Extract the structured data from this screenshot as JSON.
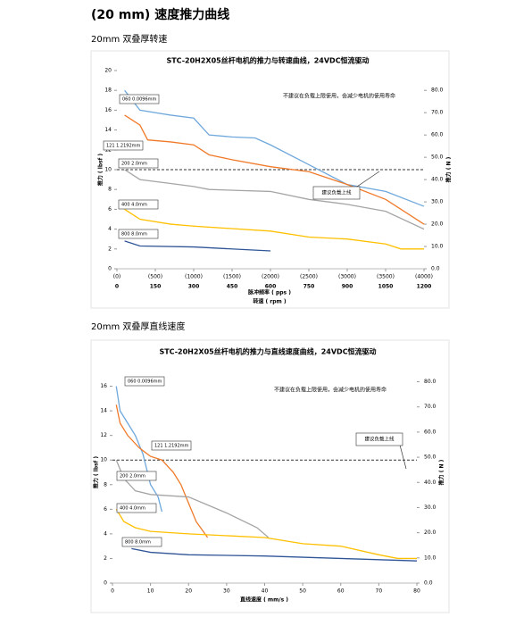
{
  "header": {
    "title": "(20 mm) 速度推力曲线"
  },
  "sections": [
    {
      "heading": "20mm 双叠厚转速"
    },
    {
      "heading": "20mm 双叠厚直线速度"
    }
  ],
  "chart_data": [
    {
      "type": "line",
      "title": "STC-20H2X05丝杆电机的推力与转速曲线，24VDC恒流驱动",
      "x_label": "脉冲频率 ( pps )",
      "x2_label": "转速 ( rpm )",
      "y_label": "推力 ( lbsf )",
      "y2_label": "推力 ( N )",
      "annotation": "不建议在负载上限使用，会减少电机的使用寿命",
      "limit_label": "建议负载上线",
      "limit": 10,
      "xlim": [
        0,
        4000
      ],
      "xticks": [
        {
          "value": 0,
          "label": "(0)"
        },
        {
          "value": 500,
          "label": "(500)"
        },
        {
          "value": 1000,
          "label": "(1000)"
        },
        {
          "value": 1500,
          "label": "(1500)"
        },
        {
          "value": 2000,
          "label": "(2000)"
        },
        {
          "value": 2500,
          "label": "(2500)"
        },
        {
          "value": 3000,
          "label": "(3000)"
        },
        {
          "value": 3500,
          "label": "(3500)"
        },
        {
          "value": 4000,
          "label": "(4000)"
        }
      ],
      "x2lim": [
        0,
        1200
      ],
      "x2ticks": [
        0,
        150,
        300,
        450,
        600,
        750,
        900,
        1050,
        1200
      ],
      "ylim": [
        0,
        20
      ],
      "yticks": [
        0,
        2,
        4,
        6,
        8,
        10,
        12,
        14,
        16,
        18,
        20
      ],
      "y2lim": [
        0,
        88.9
      ],
      "y2ticks": [
        {
          "value": 0,
          "label": "0.0"
        },
        {
          "value": 10,
          "label": "10.0"
        },
        {
          "value": 20,
          "label": "20.0"
        },
        {
          "value": 30,
          "label": "30.0"
        },
        {
          "value": 40,
          "label": "40.0"
        },
        {
          "value": 50,
          "label": "50.0"
        },
        {
          "value": 60,
          "label": "60.0"
        },
        {
          "value": 70,
          "label": "70.0"
        },
        {
          "value": 80,
          "label": "80.0"
        }
      ],
      "series": [
        {
          "name": "060 0.0096mm",
          "color": "#6fa8dc",
          "x": [
            100,
            300,
            700,
            1000,
            1200,
            1500,
            1800,
            2000,
            2500,
            3000,
            3500,
            4000
          ],
          "values": [
            18,
            16,
            15.5,
            15.2,
            13.5,
            13.3,
            13.2,
            12.5,
            10.5,
            8.5,
            7.8,
            6.3
          ]
        },
        {
          "name": "121 1.2192mm",
          "color": "#f07a2a",
          "x": [
            100,
            300,
            400,
            700,
            1000,
            1200,
            1500,
            2000,
            2500,
            3000,
            3500,
            4000
          ],
          "values": [
            15.5,
            14.5,
            13,
            12.8,
            12.5,
            11.5,
            11,
            10.3,
            9.8,
            8.5,
            7,
            4.5
          ]
        },
        {
          "name": "200 2.0mm",
          "color": "#a5a5a5",
          "x": [
            100,
            300,
            700,
            1000,
            1200,
            2000,
            2500,
            3000,
            3500,
            4000
          ],
          "values": [
            10,
            9,
            8.6,
            8.3,
            8,
            7.8,
            7,
            6.5,
            5.8,
            4
          ]
        },
        {
          "name": "400 4.0mm",
          "color": "#ffc000",
          "x": [
            100,
            300,
            700,
            1000,
            2000,
            2500,
            3000,
            3500,
            3700,
            4000
          ],
          "values": [
            6,
            5,
            4.5,
            4.3,
            3.8,
            3.2,
            3,
            2.5,
            2,
            2
          ]
        },
        {
          "name": "800 8.0mm",
          "color": "#2f5597",
          "x": [
            100,
            300,
            1000,
            2000
          ],
          "values": [
            2.8,
            2.3,
            2.2,
            1.8
          ]
        }
      ]
    },
    {
      "type": "line",
      "title": "STC-20H2X05丝杆电机的推力与直线速度曲线，24VDC恒流驱动",
      "x_label": "直线速度 ( mm/s )",
      "y_label": "推力 ( lbsf )",
      "y2_label": "推力 ( N )",
      "annotation": "不建议在负载上限使用，会减少电机的使用寿命",
      "limit_label": "建议负载上线",
      "limit": 10,
      "xlim": [
        0,
        80
      ],
      "xticks": [
        0,
        10,
        20,
        30,
        40,
        50,
        60,
        70,
        80
      ],
      "ylim": [
        0,
        18
      ],
      "yticks": [
        0,
        2,
        4,
        6,
        8,
        10,
        12,
        14,
        16
      ],
      "y2lim": [
        0,
        88
      ],
      "y2ticks": [
        {
          "value": 0,
          "label": "0.0"
        },
        {
          "value": 10,
          "label": "10.0"
        },
        {
          "value": 20,
          "label": "20.0"
        },
        {
          "value": 30,
          "label": "30.0"
        },
        {
          "value": 40,
          "label": "40.0"
        },
        {
          "value": 50,
          "label": "50.0"
        },
        {
          "value": 60,
          "label": "60.0"
        },
        {
          "value": 70,
          "label": "70.0"
        },
        {
          "value": 80,
          "label": "80.0"
        }
      ],
      "series": [
        {
          "name": "060 0.0096mm",
          "color": "#6fa8dc",
          "x": [
            1,
            2,
            4,
            6,
            8,
            10,
            12,
            13
          ],
          "values": [
            16,
            14,
            13,
            12,
            10.5,
            8,
            7,
            5.8
          ]
        },
        {
          "name": "121 1.2192mm",
          "color": "#f07a2a",
          "x": [
            1,
            2,
            4,
            7,
            10,
            13,
            16,
            18,
            20,
            22,
            25
          ],
          "values": [
            14.5,
            13,
            12,
            11,
            10.3,
            10,
            9,
            8,
            6.5,
            5,
            3.7
          ]
        },
        {
          "name": "200 2.0mm",
          "color": "#a5a5a5",
          "x": [
            1,
            3,
            6,
            10,
            20,
            30,
            38,
            41
          ],
          "values": [
            10,
            8.5,
            7.5,
            7.2,
            7,
            5.7,
            4.5,
            3.7
          ]
        },
        {
          "name": "400 4.0mm",
          "color": "#ffc000",
          "x": [
            1,
            3,
            6,
            10,
            20,
            40,
            50,
            60,
            70,
            75,
            80
          ],
          "values": [
            6,
            5,
            4.5,
            4.2,
            4,
            3.7,
            3.2,
            3,
            2.3,
            2,
            2
          ]
        },
        {
          "name": "800 8.0mm",
          "color": "#2f5597",
          "x": [
            5,
            10,
            20,
            40,
            60,
            80
          ],
          "values": [
            2.8,
            2.5,
            2.3,
            2.2,
            2,
            1.8
          ]
        }
      ]
    }
  ]
}
